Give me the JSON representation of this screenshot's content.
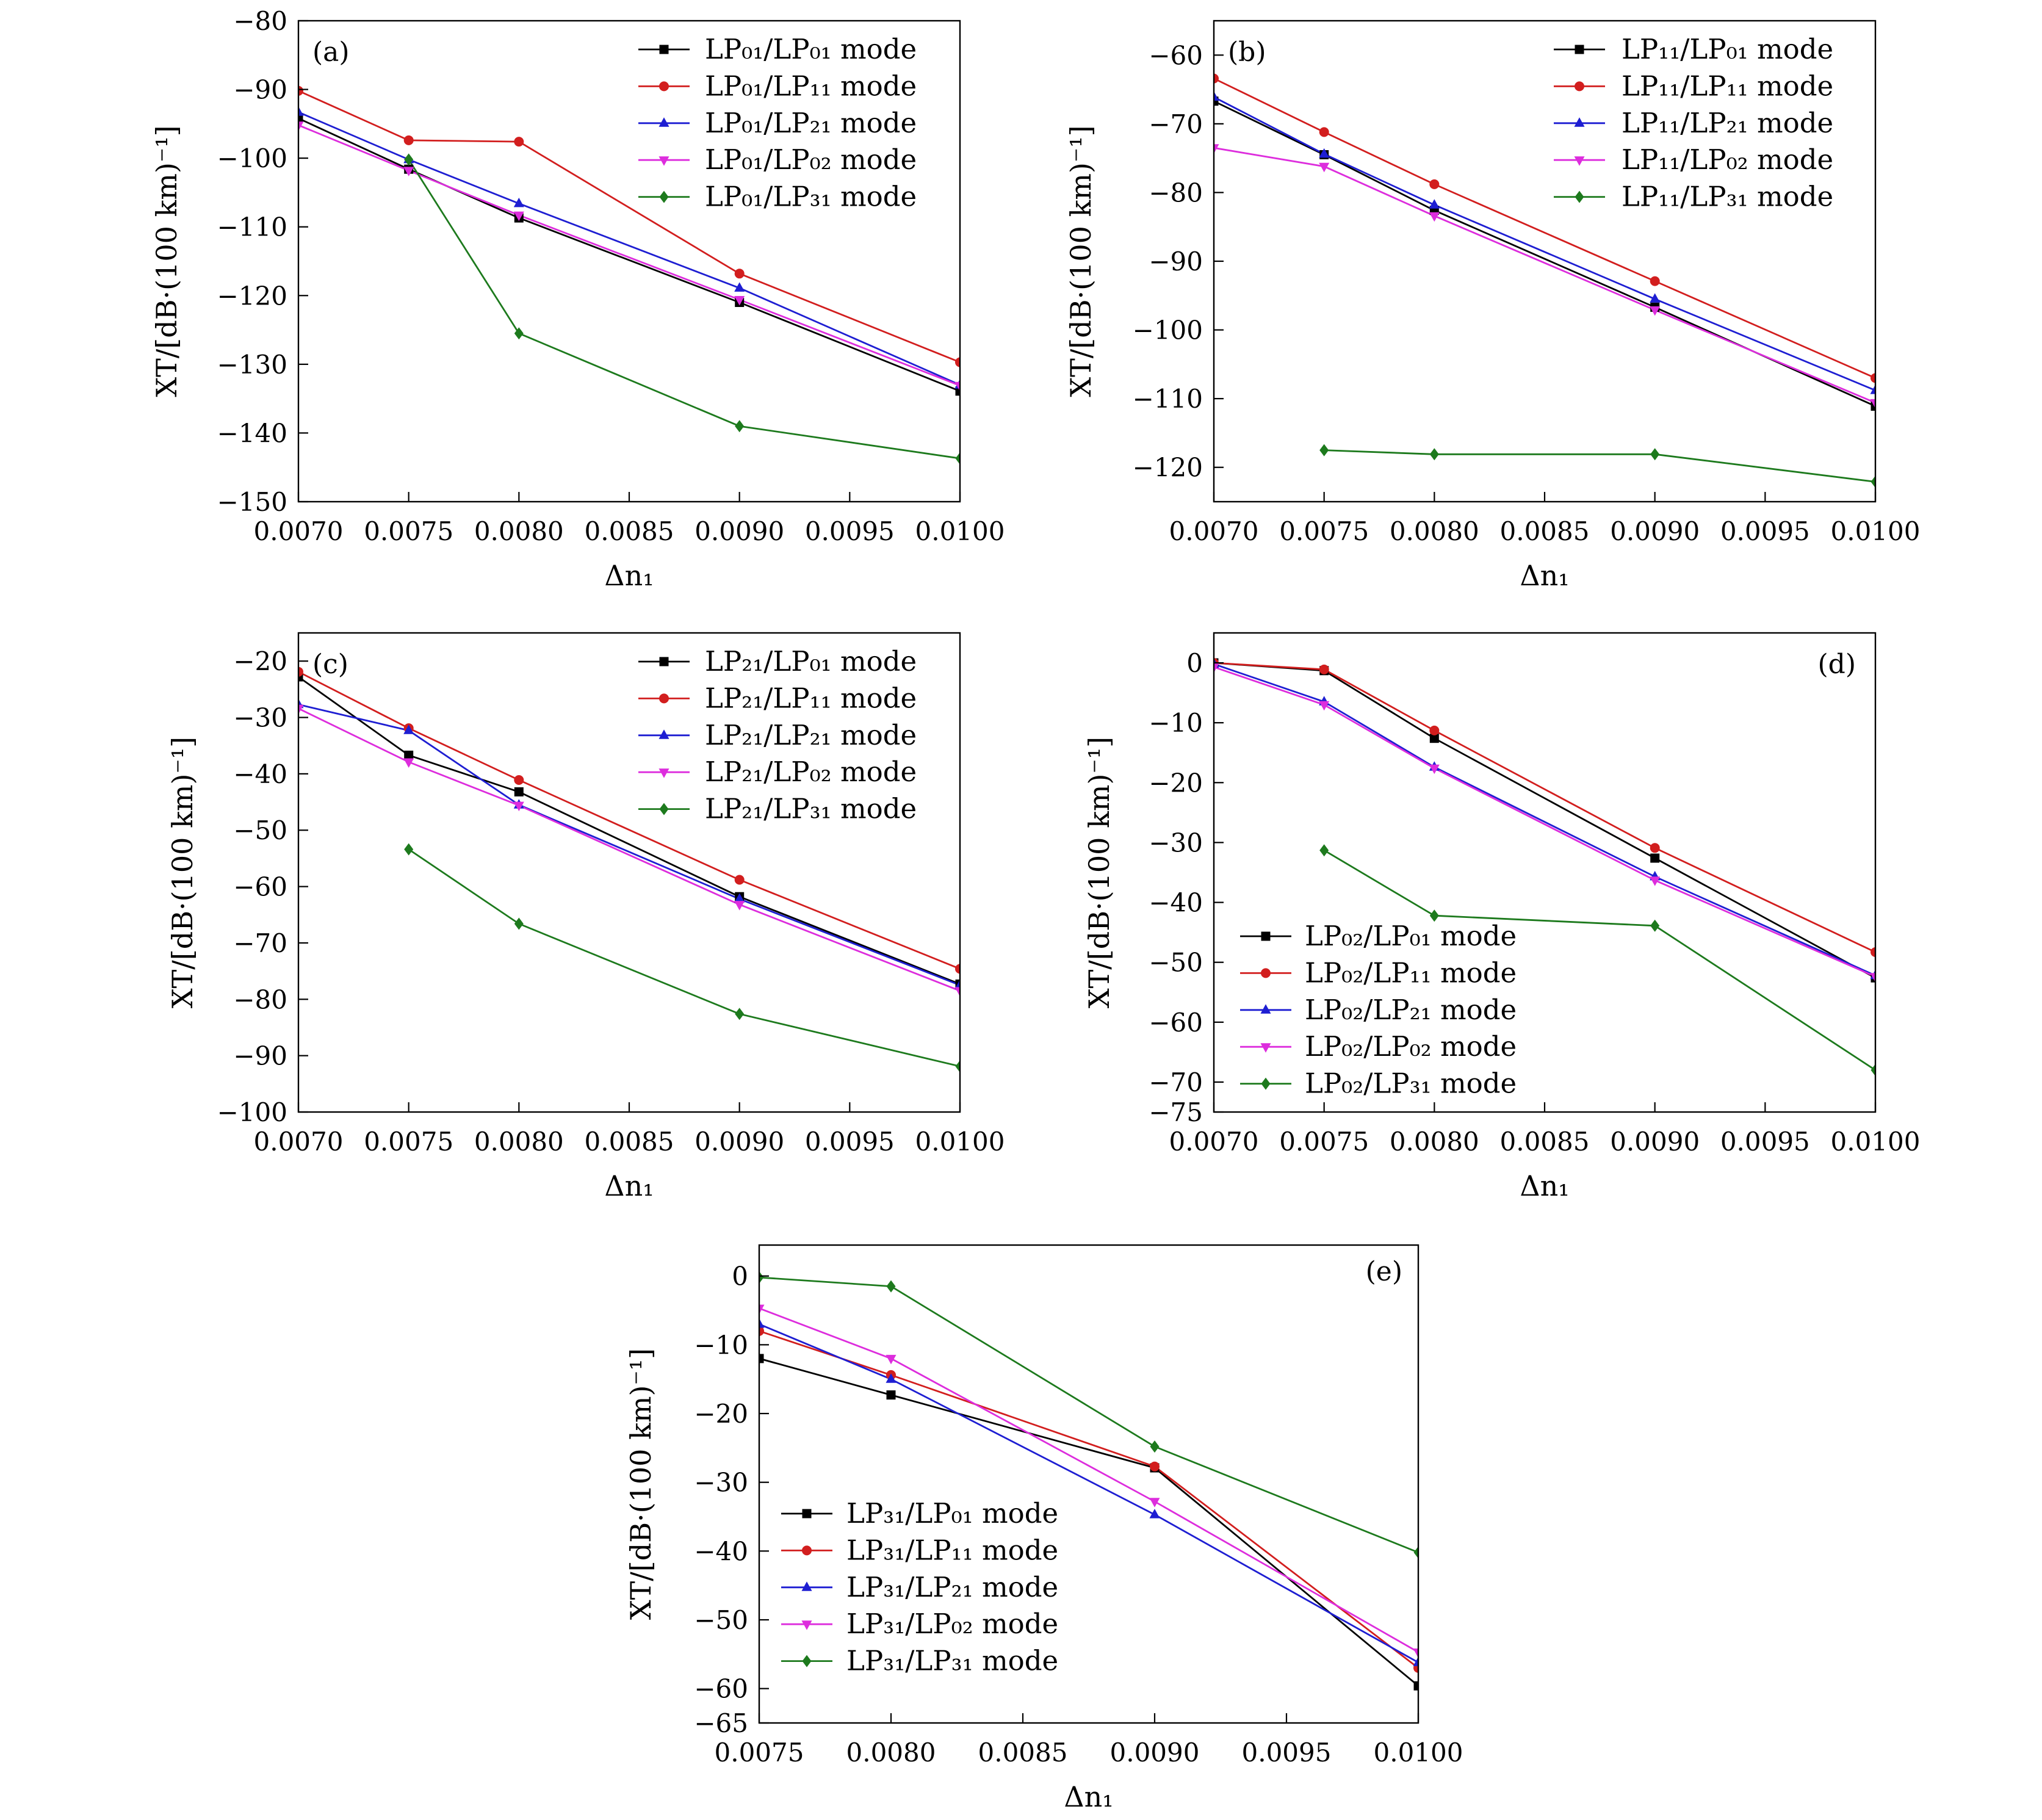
{
  "chart_data": [
    {
      "type": "line",
      "panel_label": "(a)",
      "xlabel": "Δn₁",
      "ylabel": "XT/[dB·(100 km)⁻¹]",
      "xlim": [
        0.007,
        0.01
      ],
      "ylim": [
        -150,
        -80
      ],
      "xticks": [
        0.007,
        0.0075,
        0.008,
        0.0085,
        0.009,
        0.0095,
        0.01
      ],
      "xtick_labels": [
        "0.0070",
        "0.0075",
        "0.0080",
        "0.0085",
        "0.0090",
        "0.0095",
        "0.0100"
      ],
      "yticks": [
        -80,
        -90,
        -100,
        -110,
        -120,
        -130,
        -140,
        -150
      ],
      "ytick_labels": [
        "−80",
        "−90",
        "−100",
        "−110",
        "−120",
        "−130",
        "−140",
        "−150"
      ],
      "grid": false,
      "legend_loc": "upper right",
      "series": [
        {
          "name": "LP₀₁/LP₀₁ mode",
          "color": "#000000",
          "marker": "square",
          "x": [
            0.007,
            0.0075,
            0.008,
            0.009,
            0.01
          ],
          "y": [
            -94.2,
            -101.6,
            -108.7,
            -121.0,
            -133.9
          ]
        },
        {
          "name": "LP₀₁/LP₁₁ mode",
          "color": "#d21e1e",
          "marker": "circle",
          "x": [
            0.007,
            0.0075,
            0.008,
            0.009,
            0.01
          ],
          "y": [
            -90.2,
            -97.4,
            -97.6,
            -116.8,
            -129.7
          ]
        },
        {
          "name": "LP₀₁/LP₂₁ mode",
          "color": "#1e1ed2",
          "marker": "triangle-up",
          "x": [
            0.007,
            0.0075,
            0.008,
            0.009,
            0.01
          ],
          "y": [
            -93.3,
            -100.2,
            -106.6,
            -118.9,
            -133.0
          ]
        },
        {
          "name": "LP₀₁/LP₀₂ mode",
          "color": "#dd2ddd",
          "marker": "triangle-down",
          "x": [
            0.007,
            0.0075,
            0.008,
            0.009,
            0.01
          ],
          "y": [
            -95.2,
            -101.8,
            -108.3,
            -120.6,
            -133.1
          ]
        },
        {
          "name": "LP₀₁/LP₃₁ mode",
          "color": "#1d7a1d",
          "marker": "diamond",
          "x": [
            0.0075,
            0.008,
            0.009,
            0.01
          ],
          "y": [
            -100.2,
            -125.5,
            -139.0,
            -143.7
          ]
        }
      ]
    },
    {
      "type": "line",
      "panel_label": "(b)",
      "xlabel": "Δn₁",
      "ylabel": "XT/[dB·(100 km)⁻¹]",
      "xlim": [
        0.007,
        0.01
      ],
      "ylim": [
        -125,
        -55
      ],
      "xticks": [
        0.007,
        0.0075,
        0.008,
        0.0085,
        0.009,
        0.0095,
        0.01
      ],
      "xtick_labels": [
        "0.0070",
        "0.0075",
        "0.0080",
        "0.0085",
        "0.0090",
        "0.0095",
        "0.0100"
      ],
      "yticks": [
        -60,
        -70,
        -80,
        -90,
        -100,
        -110,
        -120
      ],
      "ytick_labels": [
        "−60",
        "−70",
        "−80",
        "−90",
        "−100",
        "−110",
        "−120"
      ],
      "grid": false,
      "legend_loc": "upper right",
      "series": [
        {
          "name": "LP₁₁/LP₀₁ mode",
          "color": "#000000",
          "marker": "square",
          "x": [
            0.007,
            0.0075,
            0.008,
            0.009,
            0.01
          ],
          "y": [
            -66.7,
            -74.5,
            -82.6,
            -96.7,
            -111.1
          ]
        },
        {
          "name": "LP₁₁/LP₁₁ mode",
          "color": "#d21e1e",
          "marker": "circle",
          "x": [
            0.007,
            0.0075,
            0.008,
            0.009,
            0.01
          ],
          "y": [
            -63.4,
            -71.2,
            -78.8,
            -92.9,
            -107.0
          ]
        },
        {
          "name": "LP₁₁/LP₂₁ mode",
          "color": "#1e1ed2",
          "marker": "triangle-up",
          "x": [
            0.007,
            0.0075,
            0.008,
            0.009,
            0.01
          ],
          "y": [
            -66.1,
            -74.4,
            -81.8,
            -95.5,
            -108.8
          ]
        },
        {
          "name": "LP₁₁/LP₀₂ mode",
          "color": "#dd2ddd",
          "marker": "triangle-down",
          "x": [
            0.007,
            0.0075,
            0.008,
            0.009,
            0.01
          ],
          "y": [
            -73.5,
            -76.2,
            -83.4,
            -97.1,
            -110.6
          ]
        },
        {
          "name": "LP₁₁/LP₃₁ mode",
          "color": "#1d7a1d",
          "marker": "diamond",
          "x": [
            0.0075,
            0.008,
            0.009,
            0.01
          ],
          "y": [
            -117.5,
            -118.1,
            -118.1,
            -122.1
          ]
        }
      ]
    },
    {
      "type": "line",
      "panel_label": "(c)",
      "xlabel": "Δn₁",
      "ylabel": "XT/[dB·(100 km)⁻¹]",
      "xlim": [
        0.007,
        0.01
      ],
      "ylim": [
        -100,
        -15
      ],
      "xticks": [
        0.007,
        0.0075,
        0.008,
        0.0085,
        0.009,
        0.0095,
        0.01
      ],
      "xtick_labels": [
        "0.0070",
        "0.0075",
        "0.0080",
        "0.0085",
        "0.0090",
        "0.0095",
        "0.0100"
      ],
      "yticks": [
        -20,
        -30,
        -40,
        -50,
        -60,
        -70,
        -80,
        -90,
        -100
      ],
      "ytick_labels": [
        "−20",
        "−30",
        "−40",
        "−50",
        "−60",
        "−70",
        "−80",
        "−90",
        "−100"
      ],
      "grid": false,
      "legend_loc": "upper right",
      "series": [
        {
          "name": "LP₂₁/LP₀₁ mode",
          "color": "#000000",
          "marker": "square",
          "x": [
            0.007,
            0.0075,
            0.008,
            0.009,
            0.01
          ],
          "y": [
            -22.8,
            -36.7,
            -43.2,
            -61.8,
            -77.3
          ]
        },
        {
          "name": "LP₂₁/LP₁₁ mode",
          "color": "#d21e1e",
          "marker": "circle",
          "x": [
            0.007,
            0.0075,
            0.008,
            0.009,
            0.01
          ],
          "y": [
            -21.9,
            -31.9,
            -41.1,
            -58.8,
            -74.6
          ]
        },
        {
          "name": "LP₂₁/LP₂₁ mode",
          "color": "#1e1ed2",
          "marker": "triangle-up",
          "x": [
            0.007,
            0.0075,
            0.008,
            0.009,
            0.01
          ],
          "y": [
            -27.7,
            -32.3,
            -45.5,
            -62.2,
            -77.5
          ]
        },
        {
          "name": "LP₂₁/LP₀₂ mode",
          "color": "#dd2ddd",
          "marker": "triangle-down",
          "x": [
            0.007,
            0.0075,
            0.008,
            0.009,
            0.01
          ],
          "y": [
            -28.4,
            -37.9,
            -45.6,
            -63.2,
            -78.5
          ]
        },
        {
          "name": "LP₂₁/LP₃₁ mode",
          "color": "#1d7a1d",
          "marker": "diamond",
          "x": [
            0.0075,
            0.008,
            0.009,
            0.01
          ],
          "y": [
            -53.4,
            -66.6,
            -82.6,
            -91.9
          ]
        }
      ]
    },
    {
      "type": "line",
      "panel_label": "(d)",
      "xlabel": "Δn₁",
      "ylabel": "XT/[dB·(100 km)⁻¹]",
      "xlim": [
        0.007,
        0.01
      ],
      "ylim": [
        -75,
        5
      ],
      "xticks": [
        0.007,
        0.0075,
        0.008,
        0.0085,
        0.009,
        0.0095,
        0.01
      ],
      "xtick_labels": [
        "0.0070",
        "0.0075",
        "0.0080",
        "0.0085",
        "0.0090",
        "0.0095",
        "0.0100"
      ],
      "yticks": [
        0,
        -10,
        -20,
        -30,
        -40,
        -50,
        -60,
        -70,
        -75
      ],
      "ytick_labels": [
        "0",
        "−10",
        "−20",
        "−30",
        "−40",
        "−50",
        "−60",
        "−70",
        "−75"
      ],
      "grid": false,
      "legend_loc": "lower left",
      "series": [
        {
          "name": "LP₀₂/LP₀₁ mode",
          "color": "#000000",
          "marker": "square",
          "x": [
            0.007,
            0.0075,
            0.008,
            0.009,
            0.01
          ],
          "y": [
            0.0,
            -1.3,
            -12.6,
            -32.6,
            -52.6
          ]
        },
        {
          "name": "LP₀₂/LP₁₁ mode",
          "color": "#d21e1e",
          "marker": "circle",
          "x": [
            0.007,
            0.0075,
            0.008,
            0.009,
            0.01
          ],
          "y": [
            0.0,
            -1.1,
            -11.3,
            -30.9,
            -48.3
          ]
        },
        {
          "name": "LP₀₂/LP₂₁ mode",
          "color": "#1e1ed2",
          "marker": "triangle-up",
          "x": [
            0.007,
            0.0075,
            0.008,
            0.009,
            0.01
          ],
          "y": [
            -0.2,
            -6.5,
            -17.4,
            -35.7,
            -52.2
          ]
        },
        {
          "name": "LP₀₂/LP₀₂ mode",
          "color": "#dd2ddd",
          "marker": "triangle-down",
          "x": [
            0.007,
            0.0075,
            0.008,
            0.009,
            0.01
          ],
          "y": [
            -0.7,
            -7.0,
            -17.6,
            -36.3,
            -52.4
          ]
        },
        {
          "name": "LP₀₂/LP₃₁ mode",
          "color": "#1d7a1d",
          "marker": "diamond",
          "x": [
            0.0075,
            0.008,
            0.009,
            0.01
          ],
          "y": [
            -31.3,
            -42.2,
            -43.9,
            -68.0
          ]
        }
      ]
    },
    {
      "type": "line",
      "panel_label": "(e)",
      "xlabel": "Δn₁",
      "ylabel": "XT/[dB·(100 km)⁻¹]",
      "xlim": [
        0.0075,
        0.01
      ],
      "ylim": [
        -65,
        4.5
      ],
      "xticks": [
        0.0075,
        0.008,
        0.0085,
        0.009,
        0.0095,
        0.01
      ],
      "xtick_labels": [
        "0.0075",
        "0.0080",
        "0.0085",
        "0.0090",
        "0.0095",
        "0.0100"
      ],
      "yticks": [
        0,
        -10,
        -20,
        -30,
        -40,
        -50,
        -60,
        -65
      ],
      "ytick_labels": [
        "0",
        "−10",
        "−20",
        "−30",
        "−40",
        "−50",
        "−60",
        "−65"
      ],
      "grid": false,
      "legend_loc": "lower left",
      "series": [
        {
          "name": "LP₃₁/LP₀₁ mode",
          "color": "#000000",
          "marker": "square",
          "x": [
            0.0075,
            0.008,
            0.009,
            0.01
          ],
          "y": [
            -12.0,
            -17.3,
            -27.9,
            -59.6
          ]
        },
        {
          "name": "LP₃₁/LP₁₁ mode",
          "color": "#d21e1e",
          "marker": "circle",
          "x": [
            0.0075,
            0.008,
            0.009,
            0.01
          ],
          "y": [
            -8.0,
            -14.4,
            -27.7,
            -57.0
          ]
        },
        {
          "name": "LP₃₁/LP₂₁ mode",
          "color": "#1e1ed2",
          "marker": "triangle-up",
          "x": [
            0.0075,
            0.008,
            0.009,
            0.01
          ],
          "y": [
            -7.0,
            -15.0,
            -34.7,
            -56.2
          ]
        },
        {
          "name": "LP₃₁/LP₀₂ mode",
          "color": "#dd2ddd",
          "marker": "triangle-down",
          "x": [
            0.0075,
            0.008,
            0.009,
            0.01
          ],
          "y": [
            -4.7,
            -12.0,
            -32.8,
            -54.7
          ]
        },
        {
          "name": "LP₃₁/LP₃₁ mode",
          "color": "#1d7a1d",
          "marker": "diamond",
          "x": [
            0.0075,
            0.008,
            0.009,
            0.01
          ],
          "y": [
            -0.2,
            -1.5,
            -24.8,
            -40.2
          ]
        }
      ]
    }
  ]
}
